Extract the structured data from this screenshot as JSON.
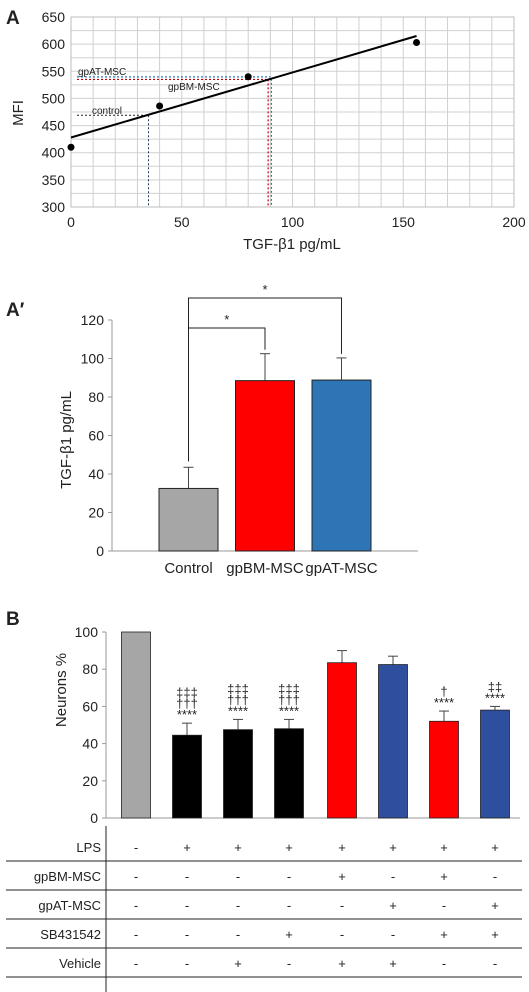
{
  "chart_data": [
    {
      "panel": "A",
      "type": "scatter",
      "xlabel": "TGF-β1 pg/mL",
      "ylabel": "MFI",
      "xlim": [
        0,
        200
      ],
      "ylim": [
        300,
        650
      ],
      "xticks": [
        "0",
        "50",
        "100",
        "150",
        "200"
      ],
      "yticks": [
        "300",
        "350",
        "400",
        "450",
        "500",
        "550",
        "600",
        "650"
      ],
      "grid": true,
      "points": [
        {
          "x": 0,
          "y": 410
        },
        {
          "x": 40,
          "y": 486
        },
        {
          "x": 80,
          "y": 540
        },
        {
          "x": 156,
          "y": 603
        }
      ],
      "fit_line": {
        "x": [
          0,
          156
        ],
        "y": [
          428,
          615
        ]
      },
      "annotations": [
        {
          "label": "control",
          "x": 35,
          "y": 469
        },
        {
          "label": "gpBM-MSC",
          "x": 89,
          "y": 535
        },
        {
          "label": "gpAT-MSC",
          "x": 90,
          "y": 536
        }
      ]
    },
    {
      "panel": "A′",
      "type": "bar",
      "ylabel": "TGF-β1 pg/mL",
      "ylim": [
        0,
        120
      ],
      "yticks": [
        "0",
        "20",
        "40",
        "60",
        "80",
        "100",
        "120"
      ],
      "grid": false,
      "categories": [
        "Control",
        "gpBM-MSC",
        "gpAT-MSC"
      ],
      "values": [
        32.5,
        88.5,
        88.8
      ],
      "errors": [
        11,
        14,
        11.5
      ],
      "colors": [
        "#a6a6a6",
        "#ff0000",
        "#2e75b6"
      ],
      "significance": [
        {
          "from": 0,
          "to": 1,
          "label": "*"
        },
        {
          "from": 0,
          "to": 2,
          "label": "*"
        }
      ]
    },
    {
      "panel": "B",
      "type": "bar",
      "ylabel": "Neurons %",
      "ylim": [
        0,
        100
      ],
      "yticks": [
        "0",
        "20",
        "40",
        "60",
        "80",
        "100"
      ],
      "grid": false,
      "values": [
        100,
        44.5,
        47.5,
        48,
        83.5,
        82.5,
        52,
        58
      ],
      "errors": [
        0,
        6.5,
        5.5,
        5,
        6.5,
        4.5,
        5.5,
        2
      ],
      "colors": [
        "#a6a6a6",
        "#000000",
        "#000000",
        "#000000",
        "#ff0000",
        "#2e4f9e",
        "#ff0000",
        "#2e4f9e"
      ],
      "marks": [
        [],
        [
          "‡‡‡",
          "†††",
          "****"
        ],
        [
          "‡‡‡",
          "†††",
          "****"
        ],
        [
          "‡‡‡",
          "†††",
          "****"
        ],
        [],
        [],
        [
          "†",
          "****"
        ],
        [
          "‡‡",
          "****"
        ]
      ],
      "table": {
        "row_labels": [
          "LPS",
          "gpBM-MSC",
          "gpAT-MSC",
          "SB431542",
          "Vehicle"
        ],
        "rows": [
          [
            "-",
            "+",
            "+",
            "+",
            "+",
            "+",
            "+",
            "+"
          ],
          [
            "-",
            "-",
            "-",
            "-",
            "+",
            "-",
            "+",
            "-"
          ],
          [
            "-",
            "-",
            "-",
            "-",
            "-",
            "+",
            "-",
            "+"
          ],
          [
            "-",
            "-",
            "-",
            "+",
            "-",
            "-",
            "+",
            "+"
          ],
          [
            "-",
            "-",
            "+",
            "-",
            "+",
            "+",
            "-",
            "-"
          ]
        ]
      }
    }
  ]
}
